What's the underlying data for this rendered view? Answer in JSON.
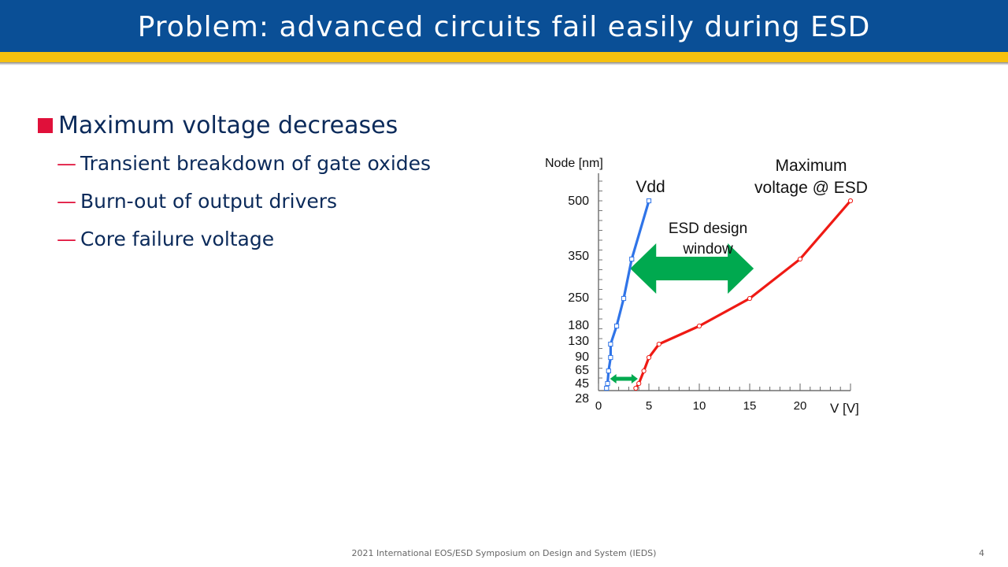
{
  "title": "Problem: advanced circuits fail easily during ESD",
  "colors": {
    "title_bg": "#0a4f96",
    "title_stripe": "#f6c10e",
    "bullet": "#e0103a",
    "text": "#0b2a5a",
    "vdd": "#2f74e8",
    "esd": "#ef1a14",
    "arrow": "#00a94f"
  },
  "bullets": {
    "main": "Maximum voltage decreases",
    "dash": "—",
    "subs": [
      "Transient breakdown of gate oxides",
      "Burn-out of output drivers",
      "Core failure voltage"
    ]
  },
  "chart_data": {
    "type": "line",
    "xlabel": "V [V]",
    "ylabel": "Node [nm]",
    "xlim": [
      0,
      25
    ],
    "x_ticks": [
      "0",
      "5",
      "10",
      "15",
      "20"
    ],
    "y_ticks": [
      "28",
      "45",
      "65",
      "90",
      "130",
      "180",
      "250",
      "350",
      "500"
    ],
    "series": [
      {
        "name": "Vdd",
        "points": [
          {
            "node": 28,
            "v": 0.8
          },
          {
            "node": 45,
            "v": 0.9
          },
          {
            "node": 65,
            "v": 1.0
          },
          {
            "node": 90,
            "v": 1.2
          },
          {
            "node": 130,
            "v": 1.2
          },
          {
            "node": 180,
            "v": 1.8
          },
          {
            "node": 250,
            "v": 2.5
          },
          {
            "node": 350,
            "v": 3.3
          },
          {
            "node": 500,
            "v": 5.0
          }
        ]
      },
      {
        "name": "Maximum voltage @ ESD",
        "points": [
          {
            "node": 28,
            "v": 3.7
          },
          {
            "node": 45,
            "v": 4.0
          },
          {
            "node": 65,
            "v": 4.5
          },
          {
            "node": 90,
            "v": 5.0
          },
          {
            "node": 130,
            "v": 6.0
          },
          {
            "node": 180,
            "v": 10.0
          },
          {
            "node": 250,
            "v": 15.0
          },
          {
            "node": 350,
            "v": 20.0
          },
          {
            "node": 500,
            "v": 25.0
          }
        ]
      }
    ],
    "annotations": {
      "vdd_label": "Vdd",
      "esd_label_line1": "Maximum",
      "esd_label_line2": "voltage @ ESD",
      "window_line1": "ESD design",
      "window_line2": "window"
    }
  },
  "footer": "2021 International EOS/ESD Symposium on Design and System (IEDS)",
  "page_number": "4"
}
